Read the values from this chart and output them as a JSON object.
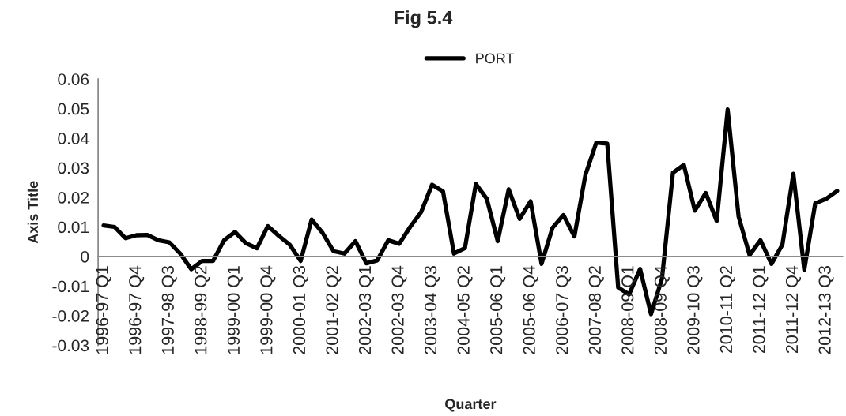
{
  "chart_data": {
    "type": "line",
    "title": "Fig 5.4",
    "xlabel": "Quarter",
    "ylabel": "Axis Title",
    "categories": [
      "1996-97 Q1",
      null,
      null,
      "1996-97 Q4",
      null,
      null,
      "1997-98 Q3",
      null,
      null,
      "1998-99 Q2",
      null,
      null,
      "1999-00 Q1",
      null,
      null,
      "1999-00 Q4",
      null,
      null,
      "2000-01 Q3",
      null,
      null,
      "2001-02 Q2",
      null,
      null,
      "2002-03 Q1",
      null,
      null,
      "2002-03 Q4",
      null,
      null,
      "2003-04 Q3",
      null,
      null,
      "2004-05 Q2",
      null,
      null,
      "2005-06 Q1",
      null,
      null,
      "2005-06 Q4",
      null,
      null,
      "2006-07 Q3",
      null,
      null,
      "2007-08 Q2",
      null,
      null,
      "2008-09 Q1",
      null,
      null,
      "2008-09 Q4",
      null,
      null,
      "2009-10 Q3",
      null,
      null,
      "2010-11 Q2",
      null,
      null,
      "2011-12 Q1",
      null,
      null,
      "2011-12 Q4",
      null,
      null,
      "2012-13 Q3",
      null
    ],
    "series": [
      {
        "name": "PORT",
        "color": "#000000",
        "values": [
          0.0105,
          0.01,
          0.0062,
          0.0072,
          0.0073,
          0.0055,
          0.0048,
          0.001,
          -0.0043,
          -0.0015,
          -0.0015,
          0.0055,
          0.0083,
          0.0045,
          0.0028,
          0.0103,
          0.007,
          0.004,
          -0.0015,
          0.0125,
          0.008,
          0.0018,
          0.001,
          0.0052,
          -0.0023,
          -0.0013,
          0.0055,
          0.0043,
          0.01,
          0.015,
          0.0243,
          0.022,
          0.001,
          0.0028,
          0.0245,
          0.0195,
          0.0052,
          0.0227,
          0.0127,
          0.0187,
          -0.0025,
          0.0097,
          0.014,
          0.0068,
          0.0275,
          0.0385,
          0.0382,
          -0.0105,
          -0.0128,
          -0.0042,
          -0.0195,
          -0.0075,
          0.0283,
          0.031,
          0.0155,
          0.0215,
          0.012,
          0.0497,
          0.0135,
          0.0005,
          0.0055,
          -0.0025,
          0.004,
          0.028,
          -0.0045,
          0.018,
          0.0195,
          0.0222
        ]
      }
    ],
    "ylim": [
      -0.03,
      0.06
    ],
    "yticks": [
      -0.03,
      -0.02,
      -0.01,
      0,
      0.01,
      0.02,
      0.03,
      0.04,
      0.05,
      0.06
    ],
    "grid": false,
    "legend": "top",
    "marker": "none",
    "line_style": "solid"
  }
}
